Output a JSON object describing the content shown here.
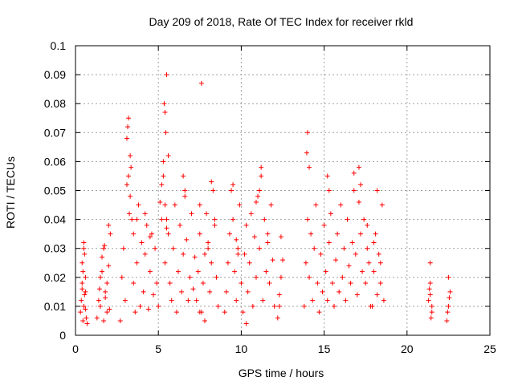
{
  "chart_data": {
    "type": "scatter",
    "title": "Day 209 of 2018, Rate Of TEC Index for receiver rkld",
    "xlabel": "GPS time / hours",
    "ylabel": "ROTI / TECUs",
    "xlim": [
      0,
      25
    ],
    "ylim": [
      0,
      0.1
    ],
    "xticks": [
      "0",
      "5",
      "10",
      "15",
      "20",
      "25"
    ],
    "yticks": [
      "0",
      "0.01",
      "0.02",
      "0.03",
      "0.04",
      "0.05",
      "0.06",
      "0.07",
      "0.08",
      "0.09",
      "0.1"
    ],
    "grid": true,
    "marker": "+",
    "color": "#ff0000",
    "series": [
      {
        "x": [
          0.3,
          0.35,
          0.4,
          0.45,
          0.5,
          0.55,
          0.6,
          0.65,
          0.7,
          0.4,
          0.5,
          0.6,
          0.45,
          0.55,
          0.5,
          0.6,
          0.4,
          1.3,
          1.4,
          1.5,
          1.6,
          1.7,
          1.8,
          1.9,
          2.0,
          2.1,
          1.5,
          1.7,
          1.9,
          2.0,
          1.6,
          1.8,
          1.75,
          2.05,
          1.45,
          2.7,
          2.8,
          2.9,
          3.0,
          3.1,
          3.2,
          3.3,
          3.4,
          3.5,
          3.6,
          3.7,
          3.8,
          3.9,
          4.0,
          4.1,
          4.2,
          4.3,
          4.4,
          4.5,
          4.6,
          4.7,
          4.8,
          4.9,
          3.2,
          3.25,
          3.1,
          3.3,
          3.5,
          3.7,
          4.2,
          4.5,
          3.15,
          3.35,
          5.0,
          5.1,
          5.2,
          5.3,
          5.4,
          5.5,
          5.6,
          5.7,
          5.8,
          5.9,
          6.0,
          6.1,
          6.2,
          6.3,
          6.4,
          6.5,
          6.6,
          6.7,
          6.8,
          6.9,
          7.0,
          7.1,
          7.2,
          5.3,
          5.45,
          5.4,
          5.5,
          5.35,
          5.6,
          6.5,
          6.6,
          7.5,
          5.4,
          5.5,
          5.2,
          7.3,
          7.4,
          7.5,
          7.6,
          7.7,
          7.8,
          7.9,
          8.0,
          8.1,
          8.2,
          8.3,
          8.4,
          8.5,
          8.6,
          7.6,
          7.5,
          8.2,
          8.4,
          8.0,
          7.8,
          9.0,
          9.1,
          9.2,
          9.3,
          9.4,
          9.5,
          9.6,
          9.7,
          9.8,
          9.9,
          10.0,
          10.1,
          10.2,
          10.3,
          10.4,
          10.5,
          10.6,
          10.7,
          10.8,
          10.9,
          11.0,
          11.1,
          11.2,
          11.3,
          11.4,
          11.5,
          11.6,
          11.7,
          11.8,
          11.9,
          12.0,
          9.5,
          9.7,
          10.9,
          11.1,
          11.2,
          11.6,
          10.3,
          9.8,
          12.2,
          12.3,
          12.4,
          12.5,
          12.3,
          12.4,
          13.8,
          13.9,
          14.0,
          14.1,
          14.2,
          14.3,
          14.4,
          14.5,
          14.6,
          14.7,
          14.8,
          14.9,
          15.0,
          15.1,
          15.2,
          15.3,
          15.4,
          15.5,
          15.6,
          15.7,
          15.8,
          15.9,
          16.0,
          16.1,
          16.2,
          16.3,
          16.4,
          16.5,
          16.6,
          16.7,
          16.8,
          16.9,
          17.0,
          17.1,
          17.2,
          17.3,
          17.4,
          17.5,
          17.6,
          17.7,
          17.8,
          14.0,
          13.95,
          14.1,
          15.2,
          15.3,
          16.8,
          17.1,
          17.2,
          17.6,
          17.9,
          18.0,
          18.1,
          18.2,
          18.3,
          18.4,
          18.5,
          18.6,
          18.0,
          18.2,
          18.4,
          21.3,
          21.4,
          21.5,
          21.4,
          21.35,
          21.45,
          21.4,
          21.5,
          22.4,
          22.5,
          22.6,
          22.5,
          22.45,
          22.55
        ],
        "y": [
          0.008,
          0.012,
          0.018,
          0.022,
          0.032,
          0.028,
          0.015,
          0.006,
          0.004,
          0.025,
          0.01,
          0.02,
          0.005,
          0.014,
          0.03,
          0.009,
          0.016,
          0.006,
          0.012,
          0.02,
          0.027,
          0.03,
          0.015,
          0.008,
          0.024,
          0.035,
          0.01,
          0.005,
          0.018,
          0.038,
          0.022,
          0.013,
          0.031,
          0.009,
          0.016,
          0.005,
          0.02,
          0.03,
          0.012,
          0.068,
          0.075,
          0.062,
          0.04,
          0.018,
          0.008,
          0.025,
          0.045,
          0.01,
          0.032,
          0.015,
          0.028,
          0.038,
          0.009,
          0.022,
          0.035,
          0.014,
          0.03,
          0.018,
          0.055,
          0.042,
          0.052,
          0.048,
          0.035,
          0.04,
          0.042,
          0.034,
          0.072,
          0.058,
          0.01,
          0.046,
          0.052,
          0.06,
          0.025,
          0.04,
          0.035,
          0.018,
          0.012,
          0.03,
          0.045,
          0.008,
          0.022,
          0.038,
          0.015,
          0.028,
          0.05,
          0.033,
          0.012,
          0.02,
          0.042,
          0.016,
          0.027,
          0.055,
          0.07,
          0.077,
          0.09,
          0.08,
          0.062,
          0.055,
          0.048,
          0.008,
          0.045,
          0.037,
          0.04,
          0.012,
          0.022,
          0.035,
          0.008,
          0.018,
          0.028,
          0.042,
          0.03,
          0.015,
          0.025,
          0.05,
          0.038,
          0.02,
          0.01,
          0.087,
          0.045,
          0.053,
          0.04,
          0.032,
          0.005,
          0.008,
          0.015,
          0.025,
          0.035,
          0.05,
          0.04,
          0.022,
          0.012,
          0.03,
          0.045,
          0.018,
          0.008,
          0.028,
          0.038,
          0.015,
          0.025,
          0.042,
          0.01,
          0.034,
          0.02,
          0.048,
          0.03,
          0.055,
          0.012,
          0.04,
          0.022,
          0.032,
          0.018,
          0.045,
          0.026,
          0.01,
          0.052,
          0.033,
          0.046,
          0.05,
          0.058,
          0.035,
          0.004,
          0.028,
          0.006,
          0.014,
          0.02,
          0.026,
          0.01,
          0.034,
          0.01,
          0.025,
          0.04,
          0.02,
          0.035,
          0.012,
          0.03,
          0.045,
          0.018,
          0.008,
          0.028,
          0.015,
          0.038,
          0.022,
          0.012,
          0.032,
          0.042,
          0.018,
          0.01,
          0.026,
          0.035,
          0.015,
          0.045,
          0.02,
          0.03,
          0.012,
          0.04,
          0.024,
          0.018,
          0.032,
          0.05,
          0.028,
          0.014,
          0.046,
          0.035,
          0.022,
          0.04,
          0.018,
          0.03,
          0.025,
          0.01,
          0.07,
          0.063,
          0.058,
          0.055,
          0.05,
          0.056,
          0.058,
          0.052,
          0.038,
          0.01,
          0.022,
          0.035,
          0.014,
          0.028,
          0.018,
          0.045,
          0.012,
          0.032,
          0.05,
          0.025,
          0.012,
          0.018,
          0.008,
          0.025,
          0.016,
          0.006,
          0.014,
          0.01,
          0.005,
          0.01,
          0.015,
          0.02,
          0.008,
          0.013
        ]
      }
    ]
  }
}
